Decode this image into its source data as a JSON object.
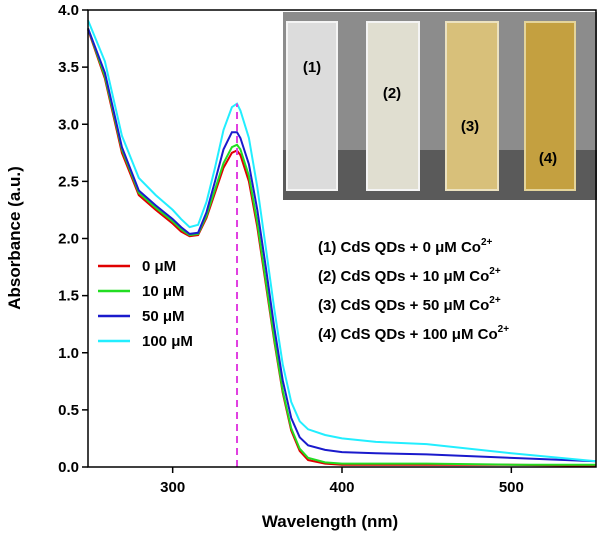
{
  "chart_data": {
    "type": "line",
    "xlabel": "Wavelength   (nm)",
    "ylabel": "Absorbance  (a.u.)",
    "x": [
      250,
      260,
      270,
      280,
      290,
      300,
      305,
      310,
      315,
      320,
      325,
      330,
      335,
      338,
      340,
      345,
      350,
      355,
      360,
      365,
      370,
      375,
      380,
      390,
      400,
      420,
      450,
      500,
      550
    ],
    "series": [
      {
        "name": "0 μM",
        "color": "#e00000",
        "values": [
          3.83,
          3.4,
          2.75,
          2.38,
          2.25,
          2.13,
          2.06,
          2.02,
          2.03,
          2.18,
          2.4,
          2.62,
          2.75,
          2.77,
          2.73,
          2.5,
          2.1,
          1.6,
          1.1,
          0.65,
          0.32,
          0.14,
          0.06,
          0.03,
          0.02,
          0.02,
          0.02,
          0.02,
          0.01
        ]
      },
      {
        "name": "10 μM",
        "color": "#22dd22",
        "values": [
          3.84,
          3.42,
          2.78,
          2.4,
          2.27,
          2.15,
          2.08,
          2.03,
          2.04,
          2.2,
          2.43,
          2.66,
          2.8,
          2.82,
          2.78,
          2.55,
          2.14,
          1.63,
          1.12,
          0.67,
          0.34,
          0.16,
          0.08,
          0.04,
          0.03,
          0.03,
          0.03,
          0.02,
          0.02
        ]
      },
      {
        "name": "50 μM",
        "color": "#1a1acc",
        "values": [
          3.84,
          3.45,
          2.8,
          2.42,
          2.29,
          2.17,
          2.1,
          2.04,
          2.05,
          2.23,
          2.5,
          2.78,
          2.93,
          2.93,
          2.88,
          2.65,
          2.25,
          1.75,
          1.22,
          0.76,
          0.43,
          0.26,
          0.19,
          0.15,
          0.13,
          0.12,
          0.11,
          0.08,
          0.05
        ]
      },
      {
        "name": "100 μM",
        "color": "#22eeff",
        "values": [
          3.91,
          3.55,
          2.9,
          2.53,
          2.38,
          2.25,
          2.17,
          2.1,
          2.12,
          2.32,
          2.62,
          2.95,
          3.15,
          3.18,
          3.12,
          2.88,
          2.45,
          1.92,
          1.38,
          0.9,
          0.57,
          0.4,
          0.33,
          0.28,
          0.25,
          0.22,
          0.2,
          0.12,
          0.05
        ]
      }
    ],
    "reference_line": {
      "x": 338,
      "y": 3.18,
      "color": "#e040e0"
    },
    "xlim": [
      250,
      550
    ],
    "xticks": [
      300,
      400,
      500
    ],
    "ylim": [
      0,
      4
    ],
    "yticks": [
      {
        "value": 0,
        "label": "0.0"
      },
      0.5,
      {
        "value": 1,
        "label": "1.0"
      },
      1.5,
      {
        "value": 2,
        "label": "2.0"
      },
      2.5,
      {
        "value": 3,
        "label": "3.0"
      },
      3.5,
      {
        "value": 4,
        "label": "4.0"
      }
    ],
    "inset_labels": [
      "(1)",
      "(2)",
      "(3)",
      "(4)"
    ],
    "annotations": [
      {
        "text": "(1) CdS QDs + 0 μM Co",
        "sup": "2+"
      },
      {
        "text": "(2) CdS QDs + 10 μM Co",
        "sup": "2+"
      },
      {
        "text": "(3) CdS QDs + 50 μM Co",
        "sup": "2+"
      },
      {
        "text": "(4) CdS QDs + 100 μM Co",
        "sup": "2+"
      }
    ]
  }
}
